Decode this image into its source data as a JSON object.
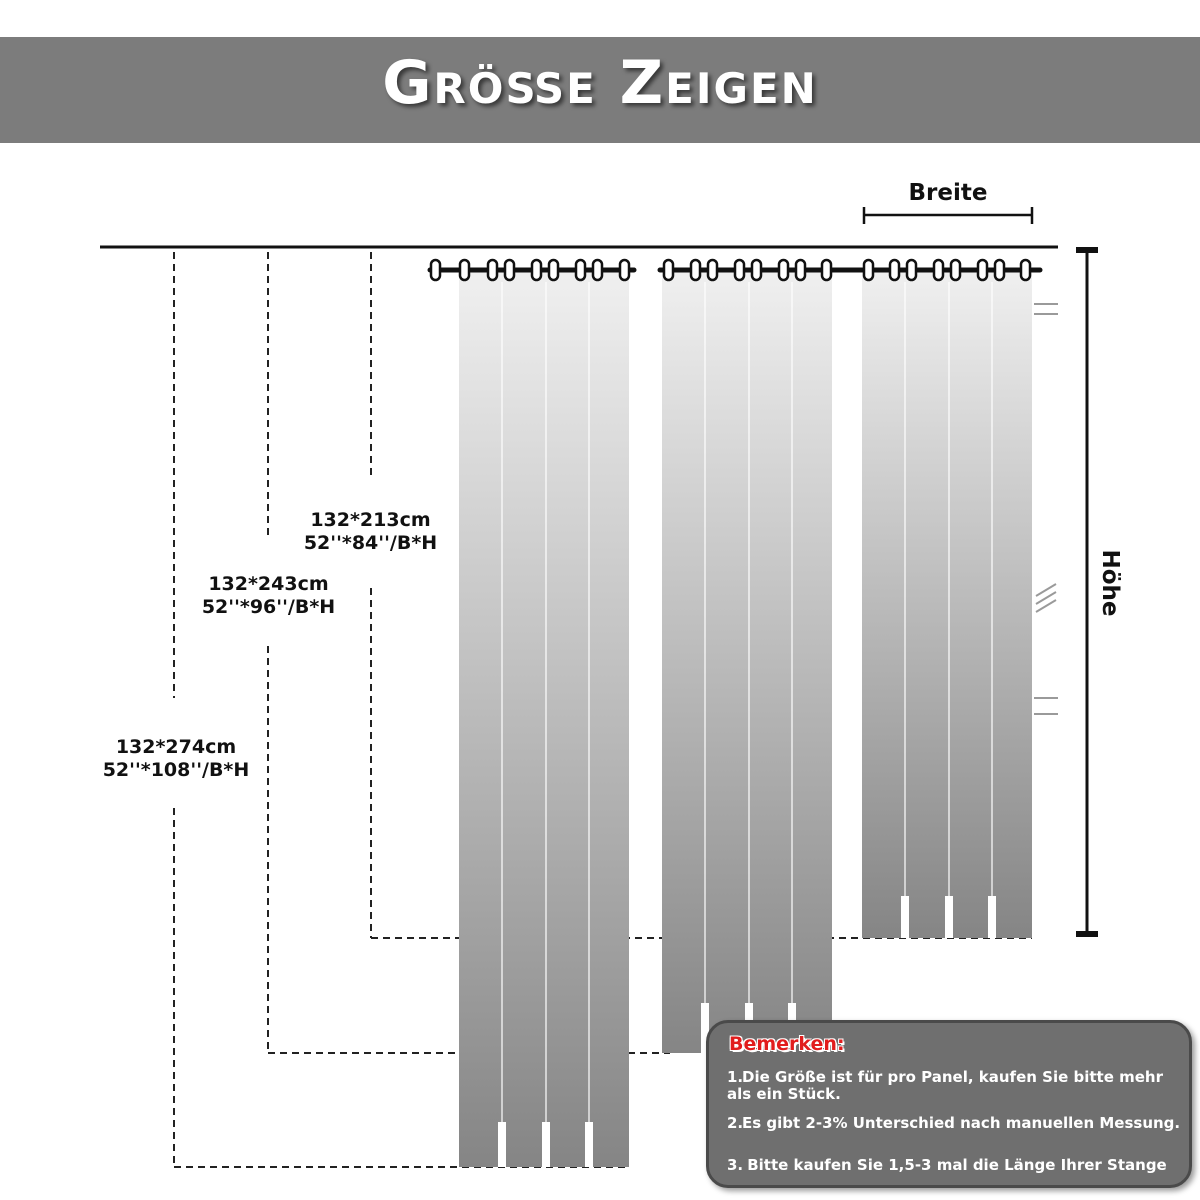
{
  "header": {
    "title": "Größe Zeigen"
  },
  "dimensions": {
    "width_label": "Breite",
    "height_label": "Höhe",
    "sizes": [
      {
        "metric": "132*213cm",
        "imperial": "52''*84''/B*H"
      },
      {
        "metric": "132*243cm",
        "imperial": "52''*96''/B*H"
      },
      {
        "metric": "132*274cm",
        "imperial": "52''*108''/B*H"
      }
    ]
  },
  "notes": {
    "title": "Bemerken:",
    "items": [
      {
        "num": "1.",
        "text": "Die Größe ist für pro Panel, kaufen Sie bitte mehr als ein Stück."
      },
      {
        "num": "2.",
        "text": "Es gibt 2-3% Unterschied nach manuellen Messung."
      },
      {
        "num": "3.",
        "text": " Bitte kaufen Sie 1,5-3 mal die Länge Ihrer Stange"
      }
    ]
  },
  "colors": {
    "banner": "#7c7c7c",
    "curtain_top": "#f0f0f0",
    "curtain_bottom": "#858585",
    "note_box": "#6f6f6f",
    "note_title": "#e11d1d"
  }
}
